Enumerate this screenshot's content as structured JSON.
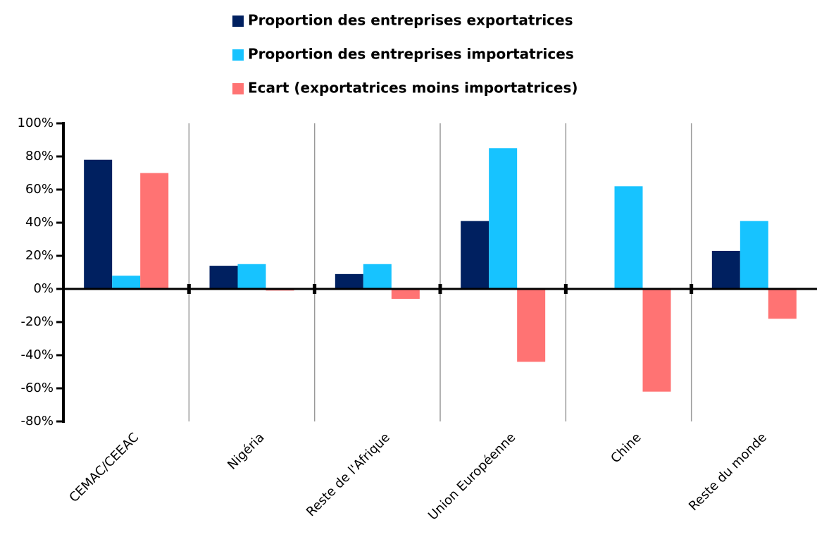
{
  "chart_data": {
    "type": "bar",
    "categories": [
      "CEMAC/CEEAC",
      "Nigéria",
      "Reste de l'Afrique",
      "Union Européenne",
      "Chine",
      "Reste du monde"
    ],
    "series": [
      {
        "name": "Proportion des entreprises exportatrices",
        "color": "#002060",
        "values": [
          78,
          14,
          9,
          41,
          0,
          23
        ]
      },
      {
        "name": "Proportion des entreprises importatrices",
        "color": "#17c3ff",
        "values": [
          8,
          15,
          15,
          85,
          62,
          41
        ]
      },
      {
        "name": "Ecart (exportatrices moins importatrices)",
        "color": "#ff7373",
        "values": [
          70,
          -1,
          -6,
          -44,
          -62,
          -18
        ]
      }
    ],
    "ylim": [
      -80,
      100
    ],
    "yticks": [
      {
        "value": -80,
        "label": "-80%"
      },
      {
        "value": -60,
        "label": "-60%"
      },
      {
        "value": -40,
        "label": "-40%"
      },
      {
        "value": -20,
        "label": "-20%"
      },
      {
        "value": 0,
        "label": "0%"
      },
      {
        "value": 20,
        "label": "20%"
      },
      {
        "value": 40,
        "label": "40%"
      },
      {
        "value": 60,
        "label": "60%"
      },
      {
        "value": 80,
        "label": "80%"
      },
      {
        "value": 100,
        "label": "100%"
      }
    ],
    "legend": "top"
  }
}
